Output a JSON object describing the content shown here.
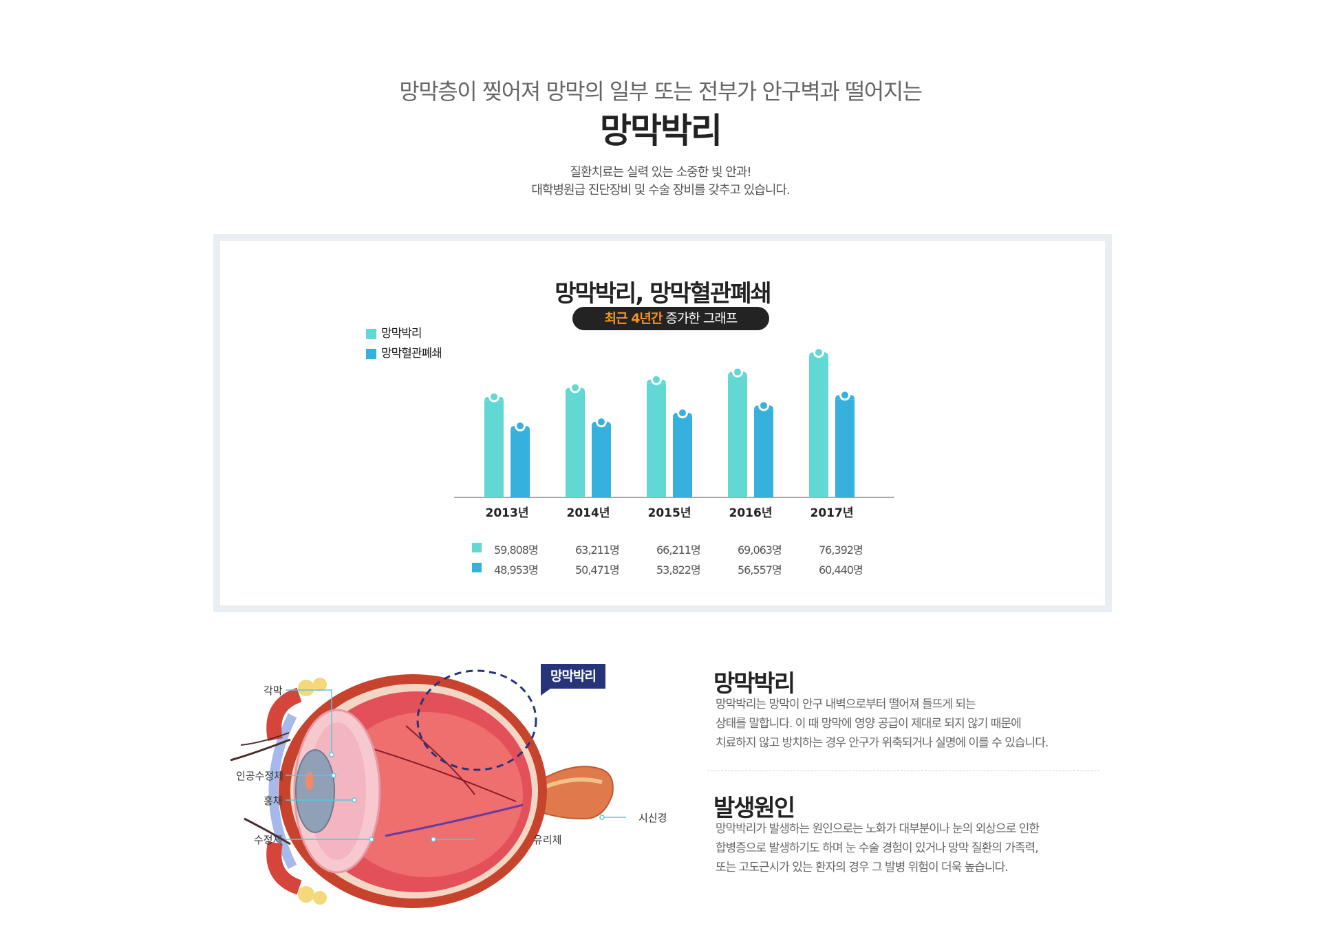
{
  "header": {
    "subtitle": "망막층이 찢어져 망막의 일부 또는 전부가 안구벽과 떨어지는",
    "title": "망막박리",
    "desc_line1": "질환치료는 실력 있는 소중한 빛 안과!",
    "desc_line2": "대학병원급 진단장비 및 수술 장비를 갖추고 있습니다."
  },
  "chart_panel": {
    "pill_highlight": "최근 4년간",
    "pill_rest": " 증가한 그래프"
  },
  "chart_data": {
    "type": "bar",
    "title": "망막박리, 망막혈관폐쇄",
    "categories": [
      "2013년",
      "2014년",
      "2015년",
      "2016년",
      "2017년"
    ],
    "series": [
      {
        "name": "망막박리",
        "values": [
          59808,
          63211,
          66211,
          69063,
          76392
        ],
        "labels": [
          "59,808명",
          "63,211명",
          "66,211명",
          "69,063명",
          "76,392명"
        ],
        "color": "#62d8d5"
      },
      {
        "name": "망막혈관폐쇄",
        "values": [
          48953,
          50471,
          53822,
          56557,
          60440
        ],
        "labels": [
          "48,953명",
          "50,471명",
          "53,822명",
          "56,557명",
          "60,440명"
        ],
        "color": "#36b1de"
      }
    ],
    "legend_position": "top-left",
    "grid": false
  },
  "eye_diagram": {
    "labels": {
      "cornea": "각막",
      "iol": "인공수정체",
      "iris": "홍채",
      "lens": "수정체",
      "vitreous": "유리체",
      "optic_nerve": "시신경"
    },
    "callout": "망막박리"
  },
  "sections": [
    {
      "title": "망막박리",
      "lines": [
        "망막박리는 망막이 안구 내벽으로부터 떨어져 들뜨게 되는",
        "상태를 말합니다.  이 때 망막에 영양 공급이 제대로 되지 않기 때문에",
        "치료하지 않고 방치하는 경우 안구가 위축되거나 실명에 이를 수 있습니다."
      ]
    },
    {
      "title": "발생원인",
      "lines": [
        "망막박리가 발생하는 원인으로는 노화가 대부분이나 눈의 외상으로 인한",
        "합병증으로 발생하기도 하며 눈 수술 경험이 있거나 망막 질환의 가족력,",
        "또는 고도근시가 있는 환자의 경우 그 발병 위험이 더욱 높습니다."
      ]
    }
  ],
  "colors": {
    "teal": "#62d8d5",
    "blue": "#36b1de",
    "navy": "#27347a",
    "orange": "#f7941d"
  }
}
